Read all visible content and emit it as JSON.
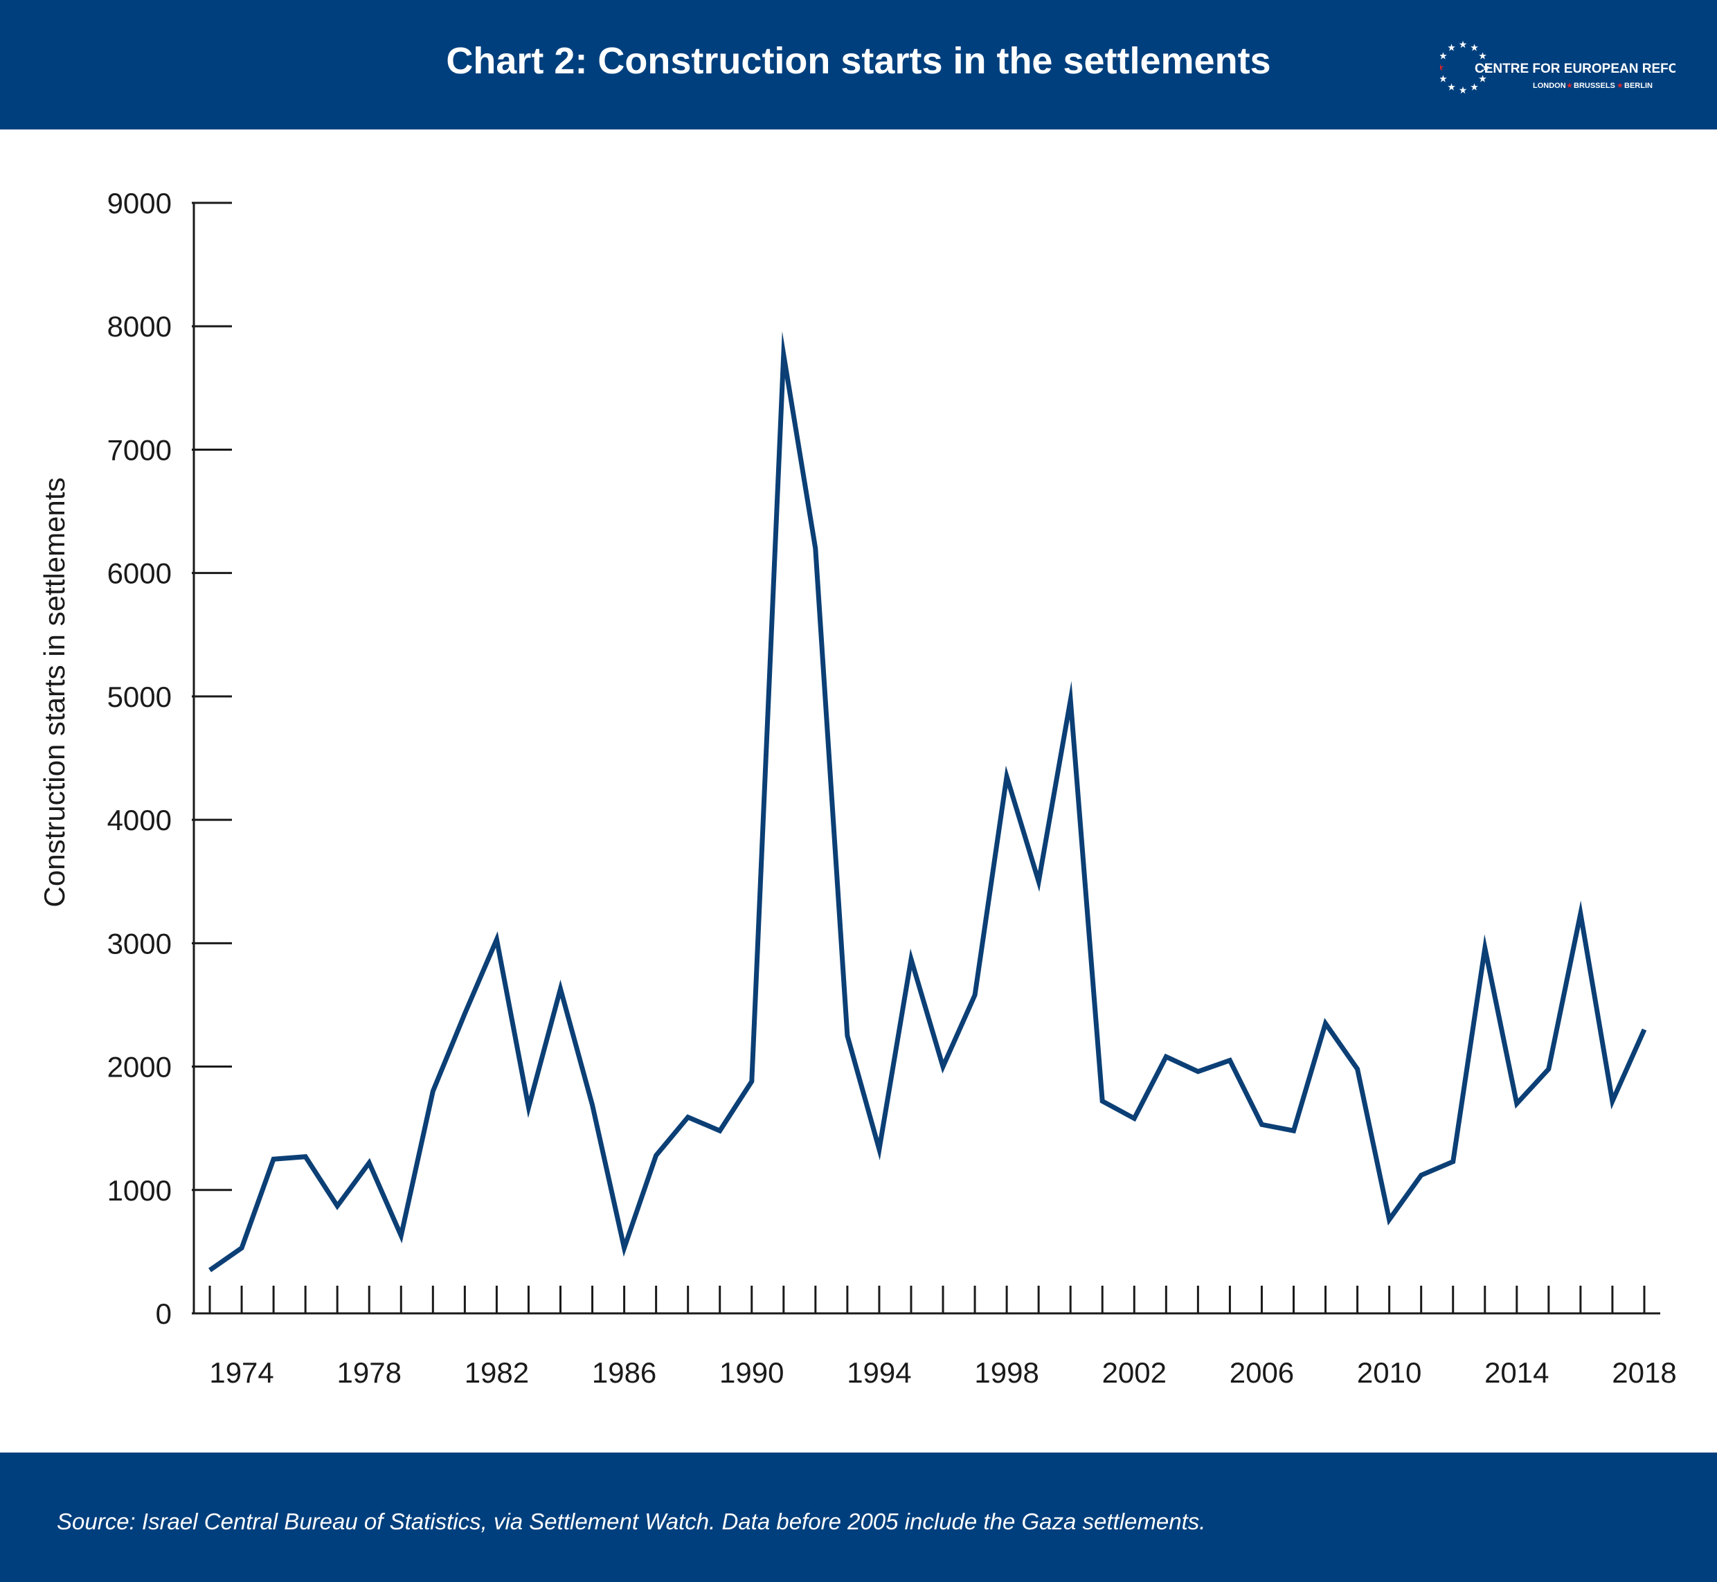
{
  "header": {
    "title": "Chart 2: Construction starts in the settlements",
    "logo_text": "CENTRE FOR EUROPEAN REFORM",
    "logo_cities": [
      "LONDON",
      "BRUSSELS",
      "BERLIN"
    ]
  },
  "footer": {
    "source": "Source: Israel Central Bureau of Statistics, via Settlement Watch. Data before 2005 include the Gaza settlements."
  },
  "colors": {
    "brand": "#003f7d",
    "line": "#0b3f75",
    "logo_star_accent": "#e0242a"
  },
  "chart_data": {
    "type": "line",
    "ylabel": "Construction starts in settlements",
    "xlabel": "",
    "ylim": [
      0,
      9000
    ],
    "yticks": [
      0,
      1000,
      2000,
      3000,
      4000,
      5000,
      6000,
      7000,
      8000,
      9000
    ],
    "xticks": [
      1974,
      1978,
      1982,
      1986,
      1990,
      1994,
      1998,
      2002,
      2006,
      2010,
      2014,
      2018
    ],
    "xlim": [
      1972.5,
      2018.5
    ],
    "grid": false,
    "series": [
      {
        "x": [
          1973,
          1974,
          1975,
          1976,
          1977,
          1978,
          1979,
          1980,
          1981,
          1982,
          1983,
          1984,
          1985,
          1986,
          1987,
          1988,
          1989,
          1990,
          1991,
          1992,
          1993,
          1994,
          1995,
          1996,
          1997,
          1998,
          1999,
          2000,
          2001,
          2002,
          2003,
          2004,
          2005,
          2006,
          2007,
          2008,
          2009,
          2010,
          2011,
          2012,
          2013,
          2014,
          2015,
          2016,
          2017,
          2018
        ],
        "values": [
          350,
          530,
          1250,
          1270,
          870,
          1220,
          630,
          1800,
          2430,
          3030,
          1670,
          2630,
          1690,
          530,
          1280,
          1590,
          1480,
          1880,
          7770,
          6200,
          2250,
          1330,
          2870,
          2000,
          2580,
          4350,
          3500,
          4970,
          1720,
          1580,
          2080,
          1960,
          2050,
          1530,
          1480,
          2350,
          1980,
          760,
          1120,
          1230,
          2960,
          1700,
          1980,
          3240,
          1720,
          2300
        ]
      }
    ]
  }
}
